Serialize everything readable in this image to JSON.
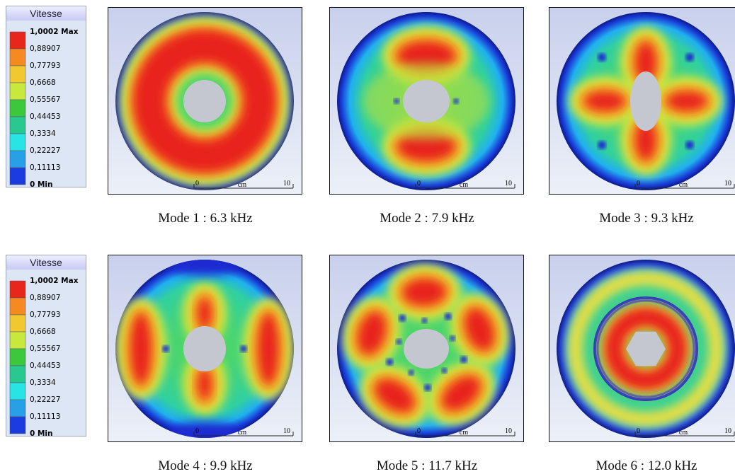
{
  "legends": [
    {
      "title": "Vitesse",
      "labels": [
        "1,0002 Max",
        "0,88907",
        "0,77793",
        "0,6668",
        "0,55567",
        "0,44453",
        "0,3334",
        "0,22227",
        "0,11113",
        "0 Min"
      ],
      "colors": [
        "#e8261c",
        "#f58a22",
        "#f2c830",
        "#c8e83c",
        "#3cc83c",
        "#28c890",
        "#28e4e4",
        "#28a0e8",
        "#1c3ce0"
      ]
    },
    {
      "title": "Vitesse",
      "labels": [
        "1,0002 Max",
        "0,88907",
        "0,77793",
        "0,6668",
        "0,55567",
        "0,44453",
        "0,3334",
        "0,22227",
        "0,11113",
        "0 Min"
      ],
      "colors": [
        "#e8261c",
        "#f58a22",
        "#f2c830",
        "#c8e83c",
        "#3cc83c",
        "#28c890",
        "#28e4e4",
        "#28a0e8",
        "#1c3ce0"
      ]
    }
  ],
  "panels": [
    {
      "caption": "Mode 1 : 6.3 kHz",
      "scale": [
        "0",
        "cm",
        "10"
      ]
    },
    {
      "caption": "Mode 2 : 7.9 kHz",
      "scale": [
        "0",
        "cm",
        "10"
      ]
    },
    {
      "caption": "Mode 3 : 9.3 kHz",
      "scale": [
        "0",
        "cm",
        "10"
      ]
    },
    {
      "caption": "Mode 4 : 9.9 kHz",
      "scale": [
        "0",
        "cm",
        "10"
      ]
    },
    {
      "caption": "Mode 5 : 11.7 kHz",
      "scale": [
        "0",
        "cm",
        "10"
      ]
    },
    {
      "caption": "Mode 6 : 12.0 kHz",
      "scale": [
        "0",
        "cm",
        "10"
      ]
    }
  ]
}
